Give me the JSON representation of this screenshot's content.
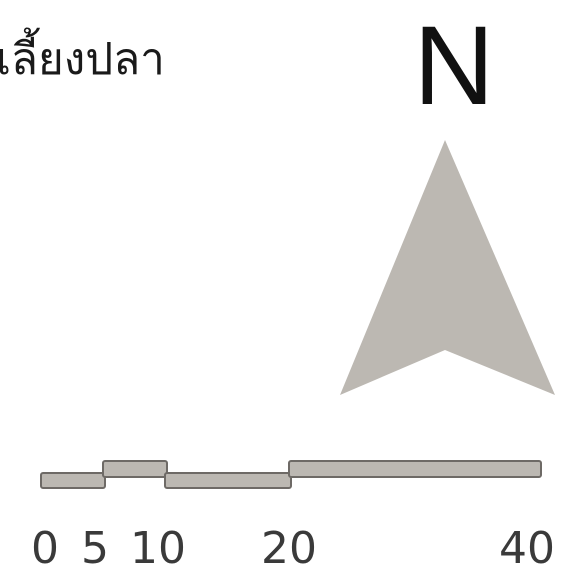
{
  "map": {
    "legend_label": "เลี้ยงปลา",
    "north_label": "N",
    "arrow_color": "#bcb8b2",
    "scale_color": "#bcb8b2",
    "scale_labels": [
      "0",
      "5",
      "10",
      "20",
      "40"
    ]
  }
}
